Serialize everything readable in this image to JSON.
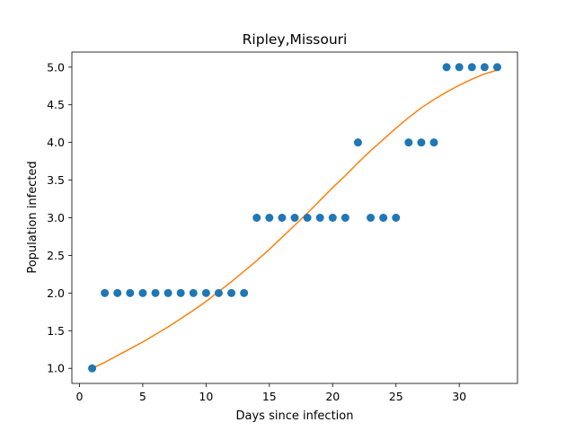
{
  "chart_data": {
    "type": "scatter",
    "title": "Ripley,Missouri",
    "xlabel": "Days since infection",
    "ylabel": "Population infected",
    "xlim": [
      -0.6,
      34.6
    ],
    "ylim": [
      0.8,
      5.2
    ],
    "xticks": [
      0,
      5,
      10,
      15,
      20,
      25,
      30
    ],
    "xtick_labels": [
      "0",
      "5",
      "10",
      "15",
      "20",
      "25",
      "30"
    ],
    "yticks": [
      1.0,
      1.5,
      2.0,
      2.5,
      3.0,
      3.5,
      4.0,
      4.5,
      5.0
    ],
    "ytick_labels": [
      "1.0",
      "1.5",
      "2.0",
      "2.5",
      "3.0",
      "3.5",
      "4.0",
      "4.5",
      "5.0"
    ],
    "grid": false,
    "series": [
      {
        "kind": "scatter",
        "color": "#1f77b4",
        "x": [
          1,
          2,
          3,
          4,
          5,
          6,
          7,
          8,
          9,
          10,
          11,
          12,
          13,
          14,
          15,
          16,
          17,
          18,
          19,
          20,
          21,
          22,
          23,
          24,
          25,
          26,
          27,
          28,
          29,
          30,
          31,
          32,
          33
        ],
        "y": [
          1,
          2,
          2,
          2,
          2,
          2,
          2,
          2,
          2,
          2,
          2,
          2,
          2,
          3,
          3,
          3,
          3,
          3,
          3,
          3,
          3,
          4,
          3,
          3,
          3,
          4,
          4,
          4,
          5,
          5,
          5,
          5,
          5
        ]
      },
      {
        "kind": "line",
        "color": "#ff7f0e",
        "x": [
          1,
          2,
          3,
          4,
          5,
          6,
          7,
          8,
          9,
          10,
          11,
          12,
          13,
          14,
          15,
          16,
          17,
          18,
          19,
          20,
          21,
          22,
          23,
          24,
          25,
          26,
          27,
          28,
          29,
          30,
          31,
          32,
          33
        ],
        "y": [
          1.0,
          1.08,
          1.17,
          1.26,
          1.35,
          1.45,
          1.55,
          1.66,
          1.77,
          1.89,
          2.02,
          2.15,
          2.29,
          2.43,
          2.58,
          2.74,
          2.9,
          3.06,
          3.23,
          3.4,
          3.56,
          3.73,
          3.89,
          4.04,
          4.19,
          4.33,
          4.46,
          4.57,
          4.67,
          4.76,
          4.84,
          4.91,
          4.96
        ]
      }
    ]
  }
}
